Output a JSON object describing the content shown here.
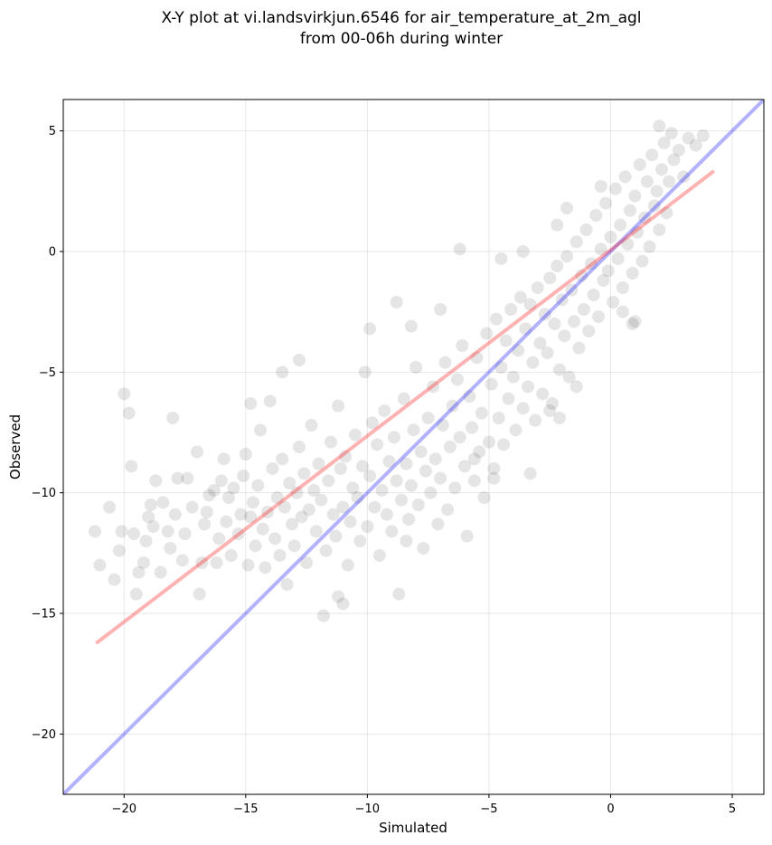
{
  "chart_data": {
    "type": "scatter",
    "title_line1": "X-Y plot at vi.landsvirkjun.6546 for air_temperature_at_2m_agl",
    "title_line2": "from 00-06h during winter",
    "xlabel": "Simulated",
    "ylabel": "Observed",
    "xlim": [
      -22.5,
      6.3
    ],
    "ylim": [
      -22.5,
      6.3
    ],
    "xticks": [
      -20,
      -15,
      -10,
      -5,
      0,
      5
    ],
    "yticks": [
      -20,
      -15,
      -10,
      -5,
      0,
      5
    ],
    "xtick_labels": [
      "−20",
      "−15",
      "−10",
      "−5",
      "0",
      "5"
    ],
    "ytick_labels": [
      "−20",
      "−15",
      "−10",
      "−5",
      "0",
      "5"
    ],
    "grid": true,
    "point_color": "#000000",
    "point_alpha": 0.1,
    "series": [
      {
        "type": "points",
        "points": [
          [
            -21.2,
            -11.6
          ],
          [
            -21.0,
            -13.0
          ],
          [
            -20.6,
            -10.6
          ],
          [
            -20.4,
            -13.6
          ],
          [
            -20.2,
            -12.4
          ],
          [
            -20.1,
            -11.6
          ],
          [
            -20.0,
            -5.9
          ],
          [
            -19.8,
            -6.7
          ],
          [
            -19.7,
            -8.9
          ],
          [
            -19.6,
            -11.7
          ],
          [
            -19.5,
            -14.2
          ],
          [
            -19.4,
            -13.3
          ],
          [
            -19.2,
            -12.9
          ],
          [
            -19.1,
            -12.0
          ],
          [
            -19.0,
            -11.0
          ],
          [
            -18.9,
            -10.5
          ],
          [
            -18.8,
            -11.4
          ],
          [
            -18.7,
            -9.5
          ],
          [
            -18.5,
            -13.3
          ],
          [
            -18.4,
            -10.4
          ],
          [
            -18.2,
            -11.6
          ],
          [
            -18.1,
            -12.3
          ],
          [
            -18.0,
            -6.9
          ],
          [
            -17.9,
            -10.9
          ],
          [
            -17.8,
            -9.4
          ],
          [
            -17.6,
            -12.8
          ],
          [
            -17.5,
            -11.7
          ],
          [
            -17.4,
            -9.4
          ],
          [
            -17.2,
            -10.6
          ],
          [
            -17.0,
            -8.3
          ],
          [
            -16.9,
            -14.2
          ],
          [
            -16.8,
            -12.9
          ],
          [
            -16.7,
            -11.3
          ],
          [
            -16.6,
            -10.8
          ],
          [
            -16.5,
            -10.1
          ],
          [
            -16.3,
            -9.9
          ],
          [
            -16.2,
            -12.9
          ],
          [
            -16.1,
            -11.9
          ],
          [
            -16.0,
            -9.5
          ],
          [
            -15.9,
            -8.6
          ],
          [
            -15.8,
            -11.2
          ],
          [
            -15.7,
            -10.2
          ],
          [
            -15.6,
            -12.6
          ],
          [
            -15.5,
            -9.8
          ],
          [
            -15.3,
            -11.7
          ],
          [
            -15.2,
            -10.9
          ],
          [
            -15.1,
            -9.3
          ],
          [
            -15.0,
            -8.4
          ],
          [
            -14.9,
            -13.0
          ],
          [
            -14.8,
            -11.0
          ],
          [
            -14.7,
            -10.4
          ],
          [
            -14.6,
            -12.2
          ],
          [
            -14.5,
            -9.7
          ],
          [
            -14.4,
            -7.4
          ],
          [
            -14.3,
            -11.5
          ],
          [
            -14.2,
            -13.1
          ],
          [
            -14.1,
            -10.8
          ],
          [
            -14.0,
            -6.2
          ],
          [
            -13.9,
            -9.0
          ],
          [
            -13.8,
            -11.9
          ],
          [
            -13.7,
            -10.2
          ],
          [
            -13.6,
            -12.6
          ],
          [
            -13.5,
            -8.6
          ],
          [
            -13.4,
            -10.6
          ],
          [
            -13.3,
            -13.8
          ],
          [
            -13.2,
            -9.6
          ],
          [
            -13.1,
            -11.3
          ],
          [
            -13.0,
            -12.2
          ],
          [
            -12.9,
            -10.0
          ],
          [
            -12.8,
            -8.1
          ],
          [
            -12.7,
            -11.0
          ],
          [
            -12.6,
            -9.2
          ],
          [
            -12.5,
            -12.9
          ],
          [
            -12.4,
            -10.7
          ],
          [
            -12.3,
            -7.2
          ],
          [
            -12.2,
            -9.9
          ],
          [
            -12.1,
            -11.6
          ],
          [
            -12.0,
            -8.8
          ],
          [
            -11.9,
            -10.3
          ],
          [
            -11.8,
            -15.1
          ],
          [
            -11.7,
            -12.4
          ],
          [
            -11.6,
            -9.5
          ],
          [
            -11.5,
            -7.9
          ],
          [
            -11.4,
            -10.9
          ],
          [
            -11.3,
            -11.8
          ],
          [
            -11.2,
            -6.4
          ],
          [
            -11.1,
            -9.0
          ],
          [
            -11.0,
            -10.6
          ],
          [
            -10.9,
            -8.5
          ],
          [
            -10.8,
            -13.0
          ],
          [
            -10.7,
            -11.2
          ],
          [
            -10.6,
            -9.8
          ],
          [
            -10.5,
            -7.6
          ],
          [
            -10.4,
            -10.2
          ],
          [
            -10.3,
            -12.0
          ],
          [
            -10.2,
            -8.9
          ],
          [
            -10.1,
            -5.0
          ],
          [
            -10.0,
            -11.4
          ],
          [
            -9.9,
            -9.3
          ],
          [
            -9.8,
            -7.1
          ],
          [
            -9.7,
            -10.6
          ],
          [
            -9.6,
            -8.0
          ],
          [
            -9.5,
            -12.6
          ],
          [
            -9.4,
            -9.9
          ],
          [
            -9.3,
            -6.6
          ],
          [
            -9.2,
            -10.9
          ],
          [
            -9.1,
            -8.7
          ],
          [
            -9.0,
            -11.6
          ],
          [
            -8.9,
            -7.7
          ],
          [
            -8.8,
            -9.5
          ],
          [
            -8.7,
            -14.2
          ],
          [
            -8.6,
            -10.3
          ],
          [
            -8.5,
            -6.1
          ],
          [
            -8.4,
            -8.8
          ],
          [
            -8.3,
            -11.1
          ],
          [
            -8.2,
            -9.7
          ],
          [
            -8.1,
            -7.4
          ],
          [
            -8.0,
            -4.8
          ],
          [
            -7.9,
            -10.5
          ],
          [
            -7.8,
            -8.3
          ],
          [
            -7.7,
            -12.3
          ],
          [
            -7.6,
            -9.1
          ],
          [
            -7.5,
            -6.9
          ],
          [
            -7.4,
            -10.0
          ],
          [
            -7.3,
            -5.6
          ],
          [
            -7.2,
            -8.6
          ],
          [
            -7.1,
            -11.3
          ],
          [
            -7.0,
            -9.4
          ],
          [
            -6.9,
            -7.2
          ],
          [
            -6.8,
            -4.6
          ],
          [
            -6.7,
            -10.7
          ],
          [
            -6.6,
            -8.1
          ],
          [
            -6.5,
            -6.4
          ],
          [
            -6.4,
            -9.8
          ],
          [
            -6.3,
            -5.3
          ],
          [
            -6.2,
            -7.7
          ],
          [
            -6.1,
            -3.9
          ],
          [
            -6.0,
            -8.9
          ],
          [
            -5.9,
            -11.8
          ],
          [
            -5.8,
            -6.0
          ],
          [
            -5.7,
            -7.3
          ],
          [
            -5.6,
            -9.5
          ],
          [
            -5.5,
            -4.4
          ],
          [
            -5.4,
            -8.3
          ],
          [
            -5.3,
            -6.7
          ],
          [
            -5.2,
            -10.2
          ],
          [
            -5.1,
            -3.4
          ],
          [
            -5.0,
            -7.9
          ],
          [
            -4.9,
            -5.5
          ],
          [
            -4.8,
            -9.0
          ],
          [
            -4.7,
            -2.8
          ],
          [
            -4.6,
            -6.9
          ],
          [
            -4.5,
            -4.8
          ],
          [
            -4.4,
            -8.0
          ],
          [
            -4.3,
            -3.7
          ],
          [
            -4.2,
            -6.1
          ],
          [
            -4.1,
            -2.4
          ],
          [
            -4.0,
            -5.2
          ],
          [
            -3.9,
            -7.4
          ],
          [
            -3.8,
            -4.1
          ],
          [
            -3.7,
            -1.9
          ],
          [
            -3.6,
            -6.5
          ],
          [
            -3.5,
            -3.2
          ],
          [
            -3.4,
            -5.6
          ],
          [
            -3.3,
            -2.2
          ],
          [
            -3.2,
            -4.6
          ],
          [
            -3.1,
            -7.0
          ],
          [
            -3.0,
            -1.5
          ],
          [
            -2.9,
            -3.8
          ],
          [
            -2.8,
            -5.9
          ],
          [
            -2.7,
            -2.6
          ],
          [
            -2.6,
            -4.2
          ],
          [
            -2.5,
            -1.1
          ],
          [
            -2.4,
            -6.3
          ],
          [
            -2.3,
            -3.0
          ],
          [
            -2.2,
            -0.6
          ],
          [
            -2.1,
            -4.9
          ],
          [
            -2.0,
            -2.0
          ],
          [
            -1.9,
            -3.5
          ],
          [
            -1.8,
            -0.2
          ],
          [
            -1.7,
            -5.2
          ],
          [
            -1.6,
            -1.6
          ],
          [
            -1.5,
            -2.9
          ],
          [
            -1.4,
            0.4
          ],
          [
            -1.3,
            -4.0
          ],
          [
            -1.2,
            -1.0
          ],
          [
            -1.1,
            -2.4
          ],
          [
            -1.0,
            0.9
          ],
          [
            -0.9,
            -3.3
          ],
          [
            -0.8,
            -0.5
          ],
          [
            -0.7,
            -1.8
          ],
          [
            -0.6,
            1.5
          ],
          [
            -0.5,
            -2.7
          ],
          [
            -0.4,
            0.1
          ],
          [
            -0.3,
            -1.2
          ],
          [
            -0.2,
            2.0
          ],
          [
            -0.1,
            -0.8
          ],
          [
            0.0,
            0.6
          ],
          [
            0.1,
            -2.1
          ],
          [
            0.2,
            2.6
          ],
          [
            0.3,
            -0.3
          ],
          [
            0.4,
            1.1
          ],
          [
            0.5,
            -1.5
          ],
          [
            0.6,
            3.1
          ],
          [
            0.7,
            0.3
          ],
          [
            0.8,
            1.7
          ],
          [
            0.9,
            -0.9
          ],
          [
            1.0,
            2.3
          ],
          [
            1.1,
            0.8
          ],
          [
            1.2,
            3.6
          ],
          [
            1.3,
            -0.4
          ],
          [
            1.4,
            1.4
          ],
          [
            1.5,
            2.9
          ],
          [
            1.6,
            0.2
          ],
          [
            1.7,
            4.0
          ],
          [
            1.8,
            1.9
          ],
          [
            1.9,
            2.5
          ],
          [
            2.0,
            0.9
          ],
          [
            2.1,
            3.4
          ],
          [
            2.2,
            4.5
          ],
          [
            2.3,
            1.6
          ],
          [
            2.4,
            2.9
          ],
          [
            2.6,
            3.8
          ],
          [
            2.8,
            4.2
          ],
          [
            3.0,
            3.1
          ],
          [
            3.2,
            4.7
          ],
          [
            3.5,
            4.4
          ],
          [
            3.8,
            4.8
          ],
          [
            2.0,
            5.2
          ],
          [
            2.5,
            4.9
          ],
          [
            -6.2,
            0.1
          ],
          [
            -4.5,
            -0.3
          ],
          [
            -9.9,
            -3.2
          ],
          [
            -8.8,
            -2.1
          ],
          [
            -11.0,
            -14.6
          ],
          [
            -11.2,
            -14.3
          ],
          [
            -8.4,
            -12.0
          ],
          [
            -12.8,
            -4.5
          ],
          [
            -13.5,
            -5.0
          ],
          [
            -14.8,
            -6.3
          ],
          [
            -3.3,
            -9.2
          ],
          [
            -4.8,
            -9.4
          ],
          [
            -5.6,
            -8.6
          ],
          [
            -2.5,
            -6.6
          ],
          [
            -1.4,
            -5.6
          ],
          [
            -2.1,
            -6.9
          ],
          [
            0.9,
            -3.0
          ],
          [
            1.0,
            -2.9
          ],
          [
            0.5,
            -2.5
          ],
          [
            -0.4,
            2.7
          ],
          [
            -1.8,
            1.8
          ],
          [
            -2.2,
            1.1
          ],
          [
            -3.6,
            0.0
          ],
          [
            -7.0,
            -2.4
          ],
          [
            -8.2,
            -3.1
          ]
        ]
      },
      {
        "type": "line",
        "color": "#0000ff",
        "alpha": 0.3,
        "points": [
          [
            -22.5,
            -22.5
          ],
          [
            6.3,
            6.3
          ]
        ]
      },
      {
        "type": "line",
        "color": "#ff0000",
        "alpha": 0.3,
        "points": [
          [
            -21.1,
            -16.2
          ],
          [
            4.2,
            3.3
          ]
        ]
      }
    ]
  }
}
